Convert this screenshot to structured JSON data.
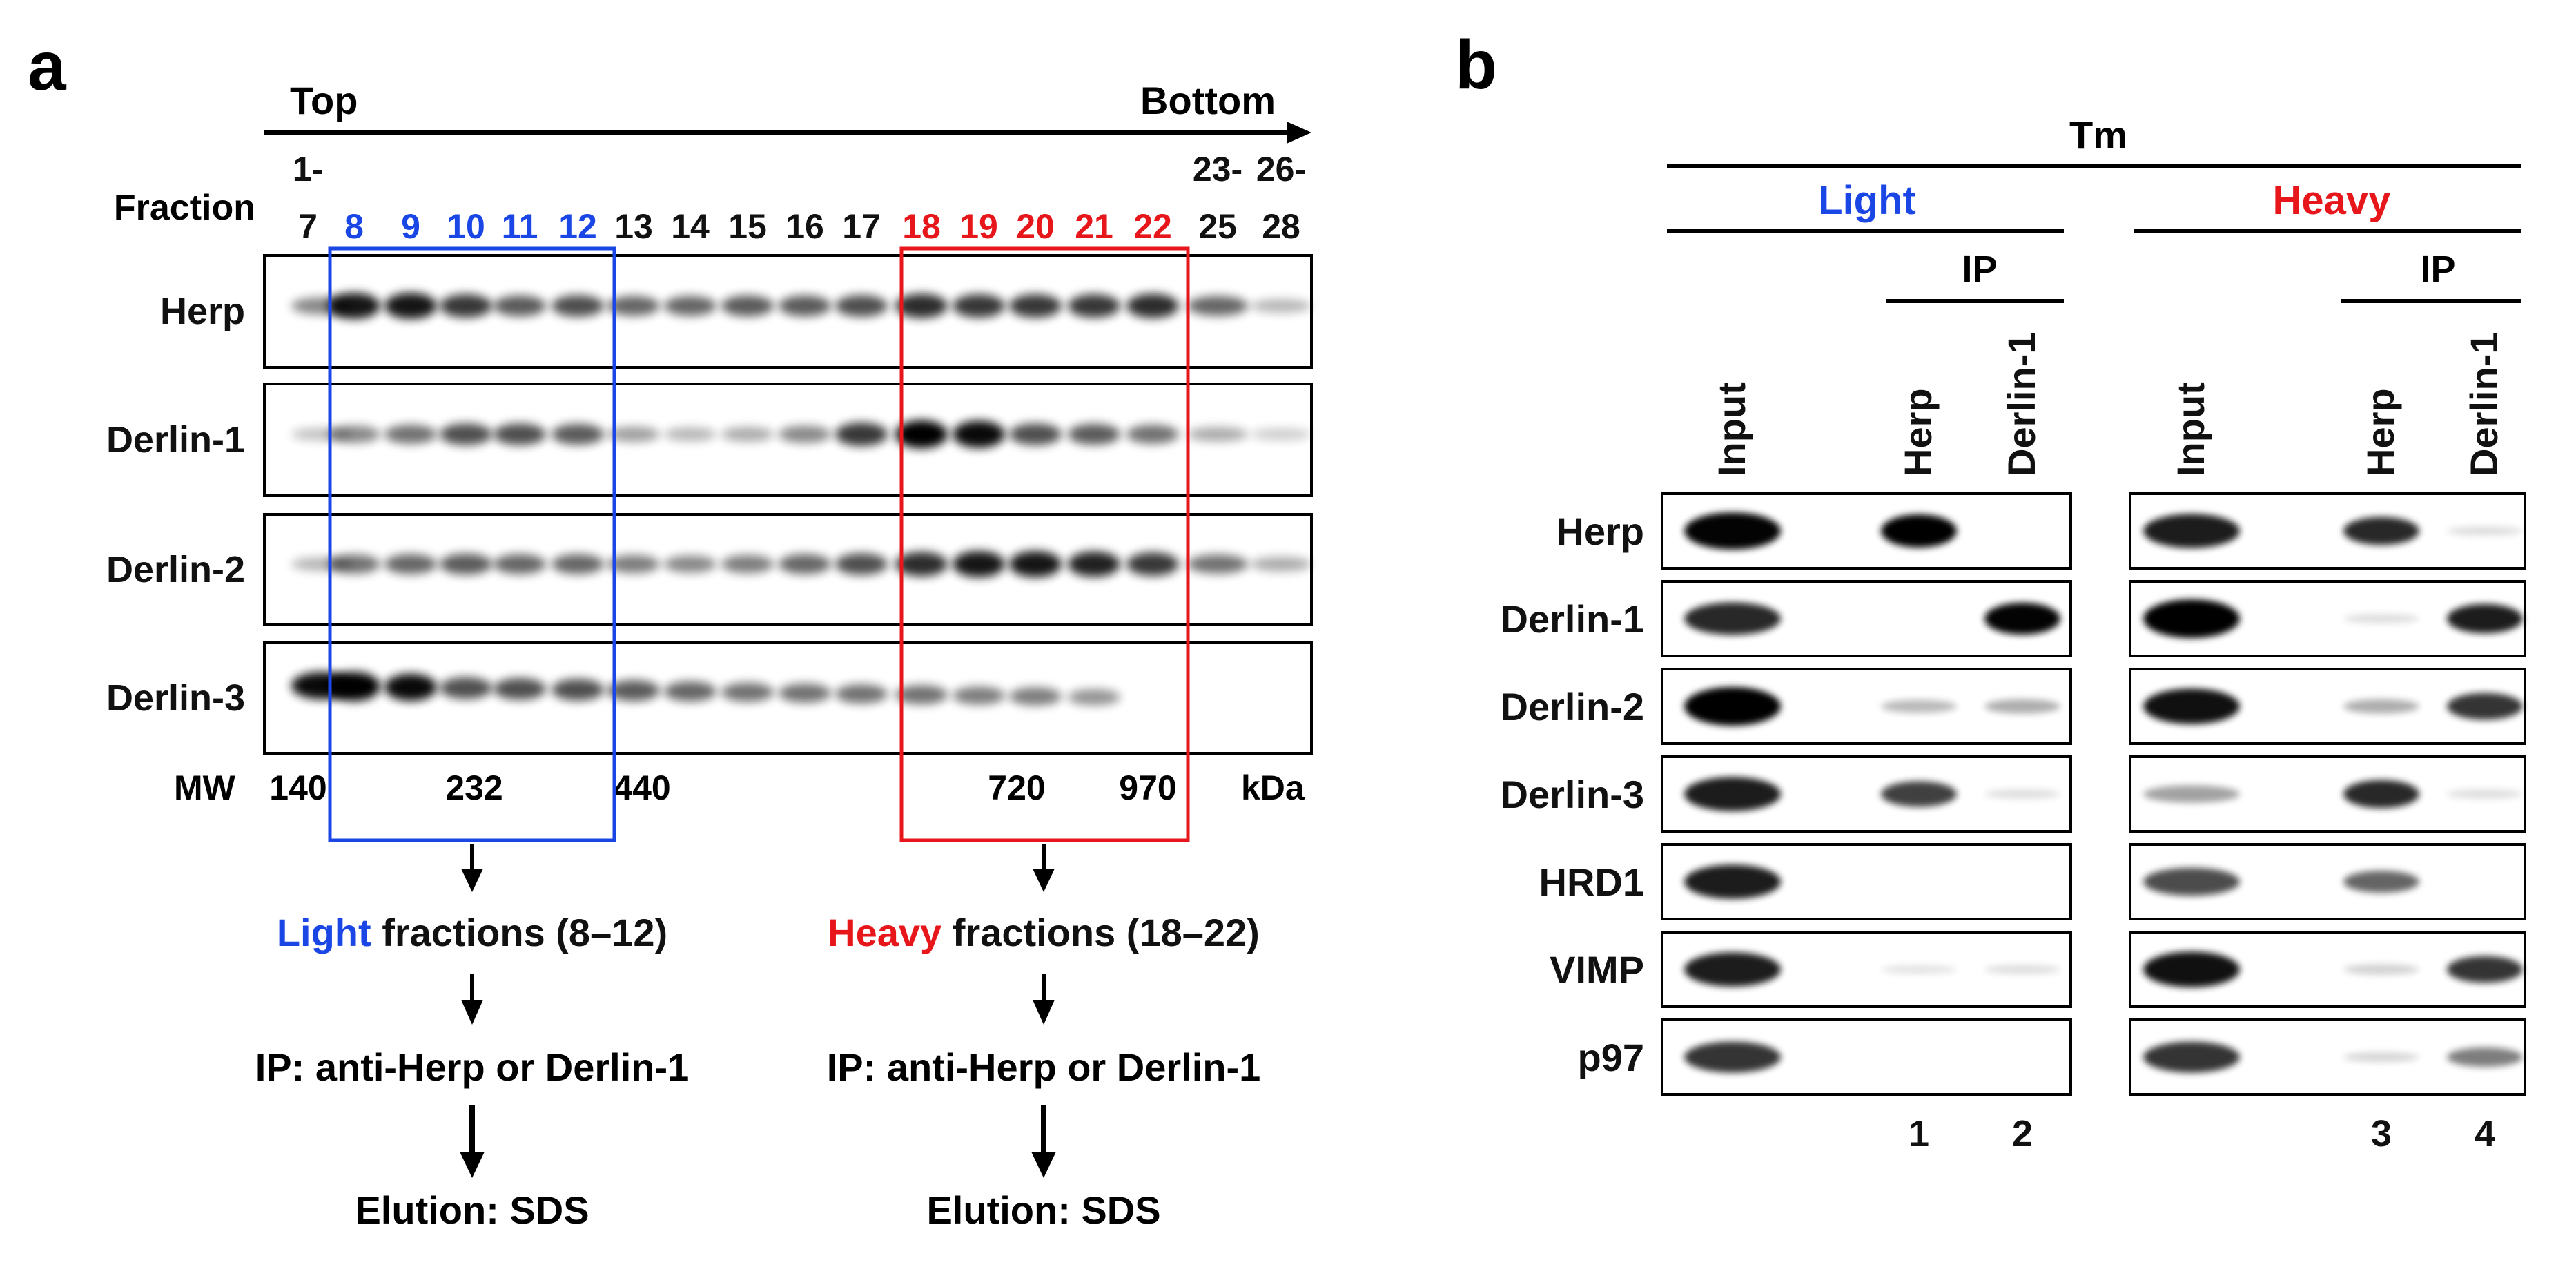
{
  "panel_a": {
    "letter": "a",
    "top_label": "Top",
    "bottom_label": "Bottom",
    "fraction_label": "Fraction",
    "fractions": [
      {
        "line1": "1-",
        "line2": "7",
        "color": "black"
      },
      {
        "line1": "",
        "line2": "8",
        "color": "blue"
      },
      {
        "line1": "",
        "line2": "9",
        "color": "blue"
      },
      {
        "line1": "",
        "line2": "10",
        "color": "blue"
      },
      {
        "line1": "",
        "line2": "11",
        "color": "blue"
      },
      {
        "line1": "",
        "line2": "12",
        "color": "blue"
      },
      {
        "line1": "",
        "line2": "13",
        "color": "black"
      },
      {
        "line1": "",
        "line2": "14",
        "color": "black"
      },
      {
        "line1": "",
        "line2": "15",
        "color": "black"
      },
      {
        "line1": "",
        "line2": "16",
        "color": "black"
      },
      {
        "line1": "",
        "line2": "17",
        "color": "black"
      },
      {
        "line1": "",
        "line2": "18",
        "color": "red"
      },
      {
        "line1": "",
        "line2": "19",
        "color": "red"
      },
      {
        "line1": "",
        "line2": "20",
        "color": "red"
      },
      {
        "line1": "",
        "line2": "21",
        "color": "red"
      },
      {
        "line1": "",
        "line2": "22",
        "color": "red"
      },
      {
        "line1": "23-",
        "line2": "25",
        "color": "black"
      },
      {
        "line1": "26-",
        "line2": "28",
        "color": "black"
      }
    ],
    "blots": [
      {
        "name": "Herp",
        "intensity": [
          0.35,
          0.85,
          0.85,
          0.7,
          0.55,
          0.6,
          0.5,
          0.5,
          0.55,
          0.55,
          0.6,
          0.75,
          0.7,
          0.7,
          0.7,
          0.75,
          0.5,
          0.15
        ]
      },
      {
        "name": "Derlin-1",
        "intensity": [
          0.1,
          0.35,
          0.45,
          0.6,
          0.6,
          0.55,
          0.25,
          0.15,
          0.2,
          0.35,
          0.7,
          0.95,
          0.9,
          0.6,
          0.55,
          0.45,
          0.2,
          0.05
        ]
      },
      {
        "name": "Derlin-2",
        "intensity": [
          0.15,
          0.45,
          0.5,
          0.55,
          0.5,
          0.5,
          0.4,
          0.35,
          0.4,
          0.5,
          0.6,
          0.75,
          0.85,
          0.85,
          0.8,
          0.7,
          0.45,
          0.2
        ]
      },
      {
        "name": "Derlin-3",
        "intensity": [
          0.9,
          1.0,
          0.9,
          0.6,
          0.6,
          0.6,
          0.55,
          0.5,
          0.45,
          0.45,
          0.45,
          0.45,
          0.4,
          0.4,
          0.3,
          0,
          0,
          0
        ]
      }
    ],
    "mw_label": "MW",
    "mw_markers": [
      "140",
      "232",
      "440",
      "720",
      "970"
    ],
    "kda_label": "kDa",
    "light_word": "Light",
    "light_rest": " fractions (8–12)",
    "heavy_word": "Heavy",
    "heavy_rest": " fractions (18–22)",
    "ip_text": "IP: anti-Herp or Derlin-1",
    "elution_text": "Elution: SDS"
  },
  "panel_b": {
    "letter": "b",
    "tm_label": "Tm",
    "light_label": "Light",
    "heavy_label": "Heavy",
    "ip_label": "IP",
    "lane_labels": [
      "Input",
      "Herp",
      "Derlin-1"
    ],
    "lane_numbers": [
      "1",
      "2",
      "3",
      "4"
    ],
    "rows": [
      {
        "name": "Herp",
        "light": [
          0.95,
          1.0,
          0
        ],
        "heavy": [
          0.85,
          0.8,
          0.05
        ]
      },
      {
        "name": "Derlin-1",
        "light": [
          0.8,
          0,
          0.95
        ],
        "heavy": [
          1.0,
          0.05,
          0.85
        ]
      },
      {
        "name": "Derlin-2",
        "light": [
          1.0,
          0.2,
          0.25
        ],
        "heavy": [
          0.9,
          0.25,
          0.75
        ]
      },
      {
        "name": "Derlin-3",
        "light": [
          0.85,
          0.7,
          0.05
        ],
        "heavy": [
          0.3,
          0.8,
          0.05
        ]
      },
      {
        "name": "HRD1",
        "light": [
          0.85,
          0,
          0
        ],
        "heavy": [
          0.65,
          0.55,
          0
        ]
      },
      {
        "name": "VIMP",
        "light": [
          0.85,
          0.03,
          0.05
        ],
        "heavy": [
          0.9,
          0.1,
          0.75
        ]
      },
      {
        "name": "p97",
        "light": [
          0.75,
          0,
          0
        ],
        "heavy": [
          0.75,
          0.08,
          0.45
        ]
      }
    ]
  },
  "colors": {
    "blue": "#1a46e6",
    "red": "#e6161b",
    "black": "#111111"
  }
}
